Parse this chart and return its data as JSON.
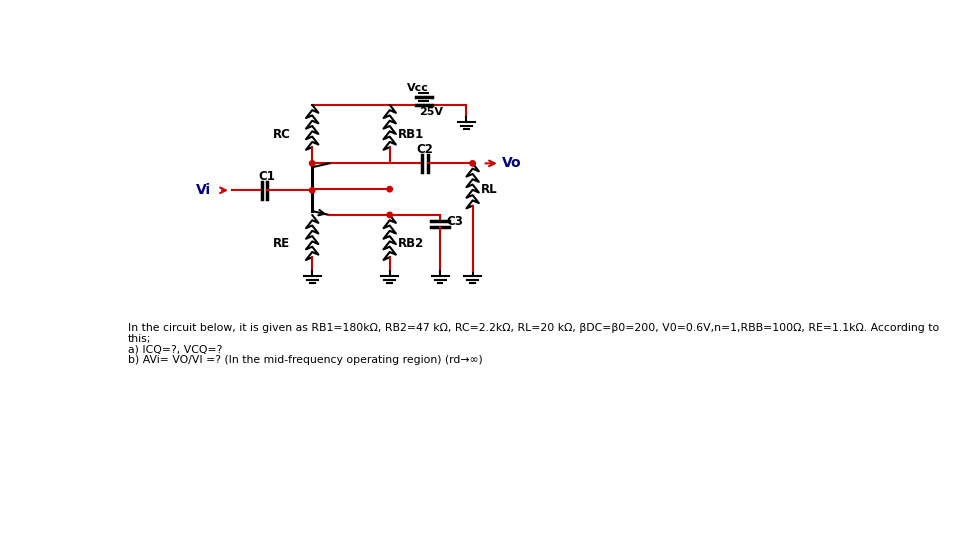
{
  "bg_color": "#ffffff",
  "red": "#cc0000",
  "blk": "#000000",
  "blue": "#000080",
  "title_line1": "In the circuit below, it is given as RB1=180kΩ, RB2=47 kΩ, RC=2.2kΩ, RL=20 kΩ, βDC=β0=200, V0=0.6V,n=1,RBB=100Ω, RE=1.1kΩ. According to",
  "title_line2": "this;",
  "title_line3": "a) ICQ=?, VCQ=?",
  "title_line4": "b) AVi= VO/VI =? (In the mid-frequency operating region) (rd→∞)"
}
